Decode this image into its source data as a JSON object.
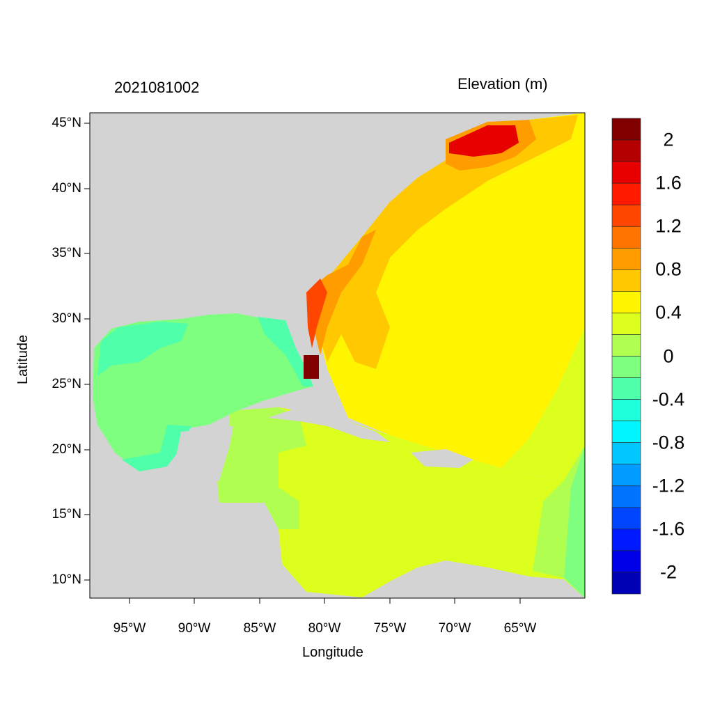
{
  "title_left": "2021081002",
  "title_right": "Elevation (m)",
  "xlabel": "Longitude",
  "ylabel": "Latitude",
  "x_ticks": [
    "95°W",
    "90°W",
    "85°W",
    "80°W",
    "75°W",
    "70°W",
    "65°W"
  ],
  "y_ticks": [
    "45°N",
    "40°N",
    "35°N",
    "30°N",
    "25°N",
    "20°N",
    "15°N",
    "10°N"
  ],
  "land_color": "#d3d3d3",
  "colorbar": {
    "range": [
      -2.2,
      2.2
    ],
    "step": 0.2,
    "labels": [
      "2",
      "1.6",
      "1.2",
      "0.8",
      "0.4",
      "0",
      "-0.4",
      "-0.8",
      "-1.2",
      "-1.6",
      "-2"
    ],
    "colors_top_to_bottom": [
      "#800000",
      "#b40000",
      "#e60000",
      "#ff1a00",
      "#ff4600",
      "#ff7300",
      "#ff9c00",
      "#ffc800",
      "#fff500",
      "#dcff1e",
      "#b0ff50",
      "#7eff80",
      "#50ffaa",
      "#1effdc",
      "#00f5ff",
      "#00c8ff",
      "#009cff",
      "#0073ff",
      "#0046ff",
      "#001aff",
      "#0000e6",
      "#0000b4"
    ]
  }
}
